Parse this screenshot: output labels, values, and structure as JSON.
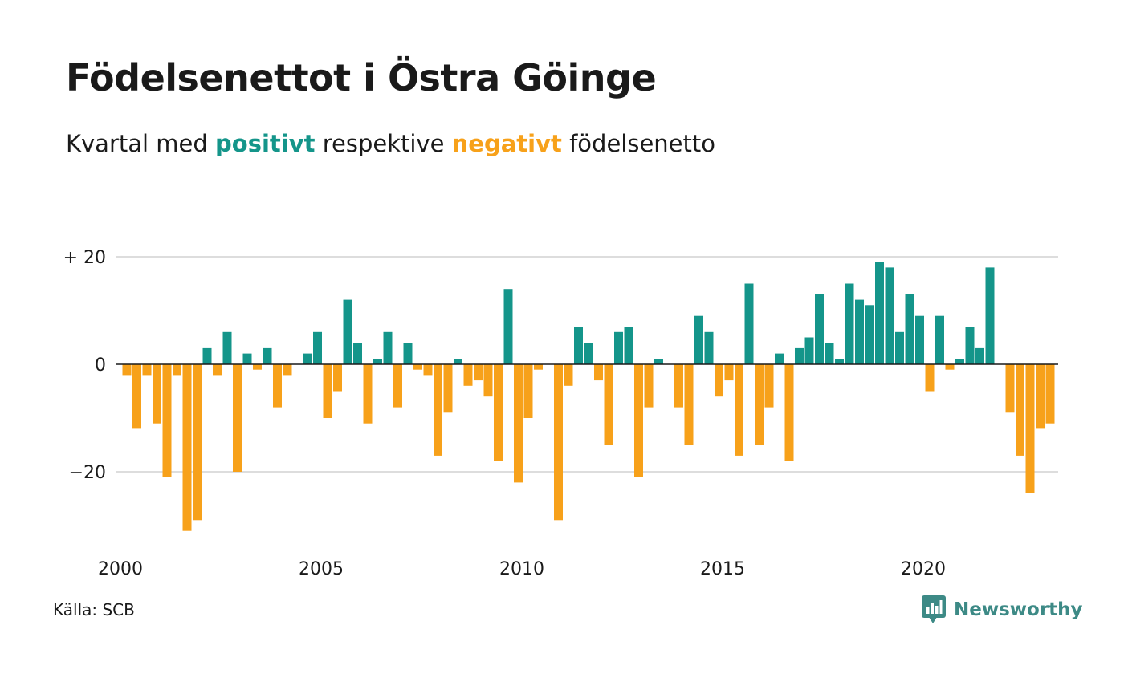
{
  "title": "Födelsenettot i Östra Göinge",
  "subtitle": {
    "pre": "Kvartal med",
    "positive": "positivt",
    "mid": "respektive",
    "negative": "negativt",
    "post": "födelsenetto"
  },
  "source": "Källa: SCB",
  "brand": {
    "name": "Newsworthy",
    "icon": "newsworthy-logo-icon"
  },
  "colors": {
    "positive": "#14958a",
    "negative": "#f7a11a",
    "grid": "#dddddd",
    "text": "#1a1a1a"
  },
  "chart_data": {
    "type": "bar",
    "x_start": "2000 Q1",
    "frequency": "quarterly",
    "ylim": [
      -34,
      21
    ],
    "yticks": [
      20,
      0,
      -20
    ],
    "ytick_labels": [
      "+ 20",
      "0",
      "−20"
    ],
    "xticks": [
      "2000",
      "2005",
      "2010",
      "2015",
      "2020"
    ],
    "grid": true,
    "values": [
      -2,
      -12,
      -2,
      -11,
      -21,
      -2,
      -31,
      -29,
      3,
      -2,
      6,
      -20,
      2,
      -1,
      3,
      -8,
      -2,
      0,
      2,
      6,
      -10,
      -5,
      12,
      4,
      -11,
      1,
      6,
      -8,
      4,
      -1,
      -2,
      -17,
      -9,
      1,
      -4,
      -3,
      -6,
      -18,
      14,
      -22,
      -10,
      -1,
      0,
      -29,
      -4,
      7,
      4,
      -3,
      -15,
      6,
      7,
      -21,
      -8,
      1,
      0,
      -8,
      -15,
      9,
      6,
      -6,
      -3,
      -17,
      15,
      -15,
      -8,
      2,
      -18,
      3,
      5,
      13,
      4,
      1,
      15,
      12,
      11,
      19,
      18,
      6,
      13,
      9,
      -5,
      9,
      -1,
      1,
      7,
      3,
      18,
      0,
      -9,
      -17,
      -24,
      -12,
      -11
    ]
  }
}
